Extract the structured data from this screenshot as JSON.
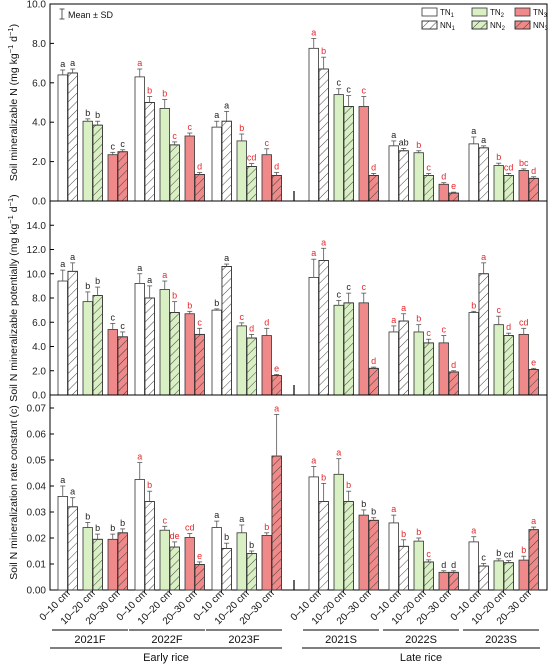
{
  "chart_data": {
    "type": "bar",
    "groups": [
      "0–10 cm",
      "10–20 cm",
      "20–30 cm"
    ],
    "blocks": [
      {
        "label": "2021F",
        "season": "early"
      },
      {
        "label": "2022F",
        "season": "early"
      },
      {
        "label": "2023F",
        "season": "early"
      },
      {
        "label": "2021S",
        "season": "late"
      },
      {
        "label": "2022S",
        "season": "late"
      },
      {
        "label": "2023S",
        "season": "late"
      }
    ],
    "seasons": [
      {
        "key": "early",
        "label": "Early rice"
      },
      {
        "key": "late",
        "label": "Late rice"
      }
    ],
    "legend": {
      "mean_sd": "Mean ± SD",
      "items": [
        {
          "key": "TN",
          "text": "TN",
          "sub": "1",
          "fill": "#ffffff",
          "hatch": false
        },
        {
          "key": "NN",
          "text": "NN",
          "sub": "1",
          "fill": "#ffffff",
          "hatch": true
        },
        {
          "key": "TN",
          "text": "TN",
          "sub": "2",
          "fill": "#d9efc4",
          "hatch": false
        },
        {
          "key": "NN",
          "text": "NN",
          "sub": "2",
          "fill": "#d9efc4",
          "hatch": true
        },
        {
          "key": "TN",
          "text": "TN",
          "sub": "3",
          "fill": "#f08a8a",
          "hatch": false
        },
        {
          "key": "NN",
          "text": "NN",
          "sub": "3",
          "fill": "#f08a8a",
          "hatch": true
        }
      ]
    },
    "colors": {
      "depth1": "#ffffff",
      "depth2": "#d9efc4",
      "depth3": "#f08a8a",
      "black_letter": "#222222",
      "red_letter": "#e8262a"
    },
    "panels": [
      {
        "ylabel_main": "Soil mineralizable N (mg kg",
        "ylabel_sup1": "−1",
        "ylabel_mid": " d",
        "ylabel_sup2": "−1",
        "ylabel_end": ")",
        "ylim": [
          0,
          10
        ],
        "yticks": [
          0.0,
          2.0,
          4.0,
          6.0,
          8.0,
          10.0
        ],
        "tick_format": "0.0",
        "bars": [
          [
            [
              6.4,
              0.25,
              "a",
              "k"
            ],
            [
              6.5,
              0.2,
              "a",
              "k"
            ],
            [
              4.05,
              0.12,
              "b",
              "k"
            ],
            [
              3.85,
              0.2,
              "b",
              "k"
            ],
            [
              2.35,
              0.12,
              "c",
              "k"
            ],
            [
              2.5,
              0.1,
              "c",
              "k"
            ]
          ],
          [
            [
              6.3,
              0.4,
              "a",
              "r"
            ],
            [
              5.0,
              0.3,
              "b",
              "r"
            ],
            [
              4.7,
              0.45,
              "b",
              "r"
            ],
            [
              2.85,
              0.15,
              "c",
              "r"
            ],
            [
              3.3,
              0.15,
              "c",
              "r"
            ],
            [
              1.35,
              0.1,
              "d",
              "r"
            ]
          ],
          [
            [
              3.75,
              0.3,
              "a",
              "k"
            ],
            [
              4.05,
              0.5,
              "a",
              "k"
            ],
            [
              3.05,
              0.35,
              "b",
              "r"
            ],
            [
              1.75,
              0.15,
              "cd",
              "r"
            ],
            [
              2.35,
              0.3,
              "c",
              "r"
            ],
            [
              1.3,
              0.15,
              "d",
              "r"
            ]
          ],
          [
            [
              7.75,
              0.5,
              "a",
              "r"
            ],
            [
              6.7,
              0.6,
              "b",
              "r"
            ],
            [
              5.4,
              0.3,
              "c",
              "k"
            ],
            [
              4.8,
              0.55,
              "c",
              "k"
            ],
            [
              4.8,
              0.5,
              "c",
              "r"
            ],
            [
              1.3,
              0.1,
              "d",
              "r"
            ]
          ],
          [
            [
              2.8,
              0.25,
              "a",
              "k"
            ],
            [
              2.55,
              0.12,
              "ab",
              "k"
            ],
            [
              2.45,
              0.1,
              "b",
              "r"
            ],
            [
              1.3,
              0.1,
              "c",
              "r"
            ],
            [
              0.85,
              0.08,
              "d",
              "r"
            ],
            [
              0.4,
              0.05,
              "e",
              "r"
            ]
          ],
          [
            [
              2.9,
              0.35,
              "a",
              "k"
            ],
            [
              2.7,
              0.1,
              "a",
              "k"
            ],
            [
              1.8,
              0.12,
              "b",
              "r"
            ],
            [
              1.3,
              0.1,
              "cd",
              "r"
            ],
            [
              1.55,
              0.08,
              "bc",
              "r"
            ],
            [
              1.15,
              0.08,
              "d",
              "r"
            ]
          ]
        ]
      },
      {
        "ylabel_main": "Soil N mineralizable potentially (mg kg",
        "ylabel_sup1": "−1",
        "ylabel_mid": " d",
        "ylabel_sup2": "−1",
        "ylabel_end": ")",
        "ylim": [
          0,
          16
        ],
        "yticks": [
          0.0,
          2.0,
          4.0,
          6.0,
          8.0,
          10.0,
          12.0,
          14.0
        ],
        "tick_format": "0.0",
        "bars": [
          [
            [
              9.4,
              0.9,
              "a",
              "k"
            ],
            [
              10.2,
              0.7,
              "a",
              "k"
            ],
            [
              7.7,
              0.8,
              "b",
              "k"
            ],
            [
              8.2,
              0.7,
              "b",
              "k"
            ],
            [
              5.4,
              0.5,
              "c",
              "k"
            ],
            [
              4.8,
              0.4,
              "c",
              "k"
            ]
          ],
          [
            [
              9.2,
              0.8,
              "a",
              "k"
            ],
            [
              8.0,
              1.0,
              "a",
              "k"
            ],
            [
              8.7,
              0.7,
              "a",
              "r"
            ],
            [
              6.8,
              0.9,
              "b",
              "r"
            ],
            [
              6.7,
              0.2,
              "b",
              "r"
            ],
            [
              5.0,
              0.5,
              "c",
              "r"
            ]
          ],
          [
            [
              7.0,
              0.1,
              "b",
              "k"
            ],
            [
              10.6,
              0.2,
              "a",
              "k"
            ],
            [
              5.7,
              0.25,
              "c",
              "r"
            ],
            [
              4.7,
              0.3,
              "d",
              "r"
            ],
            [
              4.9,
              0.6,
              "d",
              "r"
            ],
            [
              1.6,
              0.1,
              "e",
              "r"
            ]
          ],
          [
            [
              9.7,
              1.5,
              "a",
              "r"
            ],
            [
              11.1,
              1.0,
              "a",
              "r"
            ],
            [
              7.4,
              0.4,
              "c",
              "k"
            ],
            [
              7.6,
              0.8,
              "c",
              "k"
            ],
            [
              7.6,
              0.8,
              "c",
              "r"
            ],
            [
              2.2,
              0.1,
              "d",
              "r"
            ]
          ],
          [
            [
              5.2,
              0.5,
              "a",
              "r"
            ],
            [
              6.1,
              0.6,
              "a",
              "r"
            ],
            [
              5.2,
              0.6,
              "b",
              "r"
            ],
            [
              4.3,
              0.3,
              "c",
              "r"
            ],
            [
              4.3,
              0.6,
              "c",
              "r"
            ],
            [
              1.9,
              0.1,
              "d",
              "r"
            ]
          ],
          [
            [
              6.8,
              0.1,
              "b",
              "r"
            ],
            [
              10.0,
              0.9,
              "a",
              "r"
            ],
            [
              5.8,
              0.7,
              "c",
              "r"
            ],
            [
              4.9,
              0.2,
              "d",
              "r"
            ],
            [
              5.0,
              0.5,
              "cd",
              "r"
            ],
            [
              2.1,
              0.1,
              "e",
              "r"
            ]
          ]
        ]
      },
      {
        "ylabel_main": "Soil N mineralization rate constant (c)",
        "ylim": [
          0,
          0.075
        ],
        "yticks": [
          0.0,
          0.01,
          0.02,
          0.03,
          0.04,
          0.05,
          0.06,
          0.07
        ],
        "tick_format": "0.00",
        "bars": [
          [
            [
              0.036,
              0.004,
              "a",
              "k"
            ],
            [
              0.032,
              0.0035,
              "a",
              "k"
            ],
            [
              0.024,
              0.002,
              "b",
              "k"
            ],
            [
              0.0195,
              0.002,
              "b",
              "k"
            ],
            [
              0.0195,
              0.002,
              "b",
              "k"
            ],
            [
              0.022,
              0.0015,
              "b",
              "k"
            ]
          ],
          [
            [
              0.0425,
              0.0065,
              "a",
              "r"
            ],
            [
              0.034,
              0.004,
              "b",
              "r"
            ],
            [
              0.023,
              0.0015,
              "c",
              "r"
            ],
            [
              0.0165,
              0.002,
              "de",
              "r"
            ],
            [
              0.0202,
              0.0015,
              "cd",
              "r"
            ],
            [
              0.0098,
              0.001,
              "e",
              "r"
            ]
          ],
          [
            [
              0.024,
              0.0025,
              "a",
              "k"
            ],
            [
              0.016,
              0.002,
              "b",
              "k"
            ],
            [
              0.022,
              0.003,
              "a",
              "k"
            ],
            [
              0.014,
              0.001,
              "b",
              "k"
            ],
            [
              0.021,
              0.001,
              "b",
              "r"
            ],
            [
              0.0515,
              0.016,
              "a",
              "r"
            ]
          ],
          [
            [
              0.0435,
              0.004,
              "a",
              "r"
            ],
            [
              0.034,
              0.007,
              "b",
              "r"
            ],
            [
              0.0445,
              0.006,
              "a",
              "r"
            ],
            [
              0.034,
              0.004,
              "b",
              "r"
            ],
            [
              0.0288,
              0.002,
              "b",
              "k"
            ],
            [
              0.0268,
              0.001,
              "b",
              "k"
            ]
          ],
          [
            [
              0.0258,
              0.003,
              "a",
              "r"
            ],
            [
              0.0168,
              0.0025,
              "b",
              "r"
            ],
            [
              0.0188,
              0.0012,
              "b",
              "r"
            ],
            [
              0.0108,
              0.0008,
              "c",
              "r"
            ],
            [
              0.0068,
              0.0006,
              "d",
              "k"
            ],
            [
              0.0068,
              0.0006,
              "d",
              "k"
            ]
          ],
          [
            [
              0.0185,
              0.002,
              "a",
              "r"
            ],
            [
              0.0092,
              0.001,
              "c",
              "k"
            ],
            [
              0.0112,
              0.0008,
              "b",
              "k"
            ],
            [
              0.0105,
              0.0008,
              "cd",
              "k"
            ],
            [
              0.0115,
              0.0015,
              "b",
              "r"
            ],
            [
              0.0232,
              0.001,
              "a",
              "r"
            ]
          ]
        ]
      }
    ]
  }
}
